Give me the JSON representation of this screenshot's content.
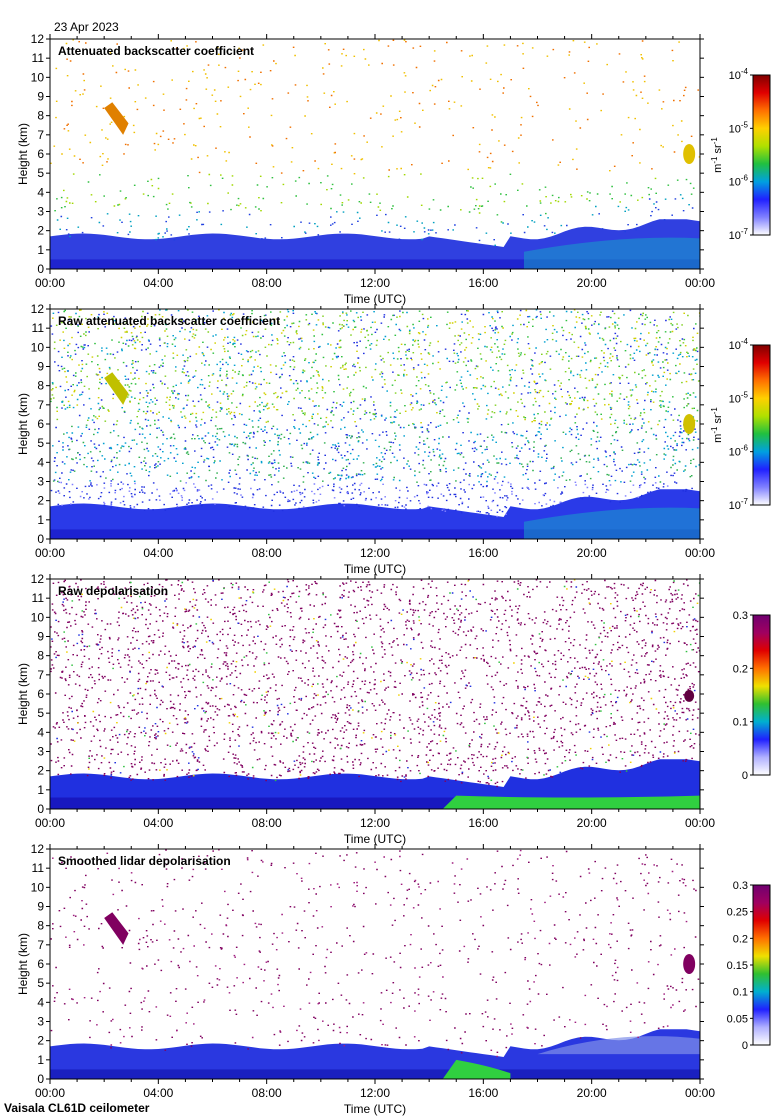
{
  "date_label": "23 Apr 2023",
  "footer": "Vaisala CL61D ceilometer",
  "colors": {
    "background": "#ffffff",
    "axis": "#000000",
    "scale": [
      "#e8e8f8",
      "#2020ff",
      "#00b0d0",
      "#30c030",
      "#f0e000",
      "#ff7000",
      "#e00000",
      "#700070"
    ],
    "depol_noise": "#800060",
    "low_blue": "#2030e0"
  },
  "chart_data": [
    {
      "type": "heatmap",
      "title": "Attenuated backscatter coefficient",
      "xlabel": "Time (UTC)",
      "ylabel": "Height (km)",
      "xticks": [
        "00:00",
        "04:00",
        "08:00",
        "12:00",
        "16:00",
        "20:00",
        "00:00"
      ],
      "xlim_hours": [
        0,
        24
      ],
      "ylim": [
        0,
        12
      ],
      "yticks": [
        0,
        1,
        2,
        3,
        4,
        5,
        6,
        7,
        8,
        9,
        10,
        11,
        12
      ],
      "colorbar": {
        "scale": "log",
        "range": [
          1e-07,
          0.0001
        ],
        "ticks": [
          {
            "base": "10",
            "exp": "-4"
          },
          {
            "base": "10",
            "exp": "-5"
          },
          {
            "base": "10",
            "exp": "-6"
          },
          {
            "base": "10",
            "exp": "-7"
          }
        ],
        "label": {
          "part1": "m",
          "exp1": "-1",
          "part2": " sr",
          "exp2": "-1"
        }
      }
    },
    {
      "type": "heatmap",
      "title": "Raw attenuated backscatter coefficient",
      "xlabel": "Time (UTC)",
      "ylabel": "Height (km)",
      "xticks": [
        "00:00",
        "04:00",
        "08:00",
        "12:00",
        "16:00",
        "20:00",
        "00:00"
      ],
      "xlim_hours": [
        0,
        24
      ],
      "ylim": [
        0,
        12
      ],
      "yticks": [
        0,
        1,
        2,
        3,
        4,
        5,
        6,
        7,
        8,
        9,
        10,
        11,
        12
      ],
      "colorbar": {
        "scale": "log",
        "range": [
          1e-07,
          0.0001
        ],
        "ticks": [
          {
            "base": "10",
            "exp": "-4"
          },
          {
            "base": "10",
            "exp": "-5"
          },
          {
            "base": "10",
            "exp": "-6"
          },
          {
            "base": "10",
            "exp": "-7"
          }
        ],
        "label": {
          "part1": "m",
          "exp1": "-1",
          "part2": " sr",
          "exp2": "-1"
        }
      }
    },
    {
      "type": "heatmap",
      "title": "Raw depolarisation",
      "xlabel": "Time (UTC)",
      "ylabel": "Height (km)",
      "xticks": [
        "00:00",
        "04:00",
        "08:00",
        "12:00",
        "16:00",
        "20:00",
        "00:00"
      ],
      "xlim_hours": [
        0,
        24
      ],
      "ylim": [
        0,
        12
      ],
      "yticks": [
        0,
        1,
        2,
        3,
        4,
        5,
        6,
        7,
        8,
        9,
        10,
        11,
        12
      ],
      "colorbar": {
        "scale": "linear",
        "range": [
          0,
          0.3
        ],
        "ticks": [
          {
            "base": "0.3"
          },
          {
            "base": "0.2"
          },
          {
            "base": "0.1"
          },
          {
            "base": "0"
          }
        ]
      }
    },
    {
      "type": "heatmap",
      "title": "Smoothed lidar depolarisation",
      "xlabel": "Time (UTC)",
      "ylabel": "Height (km)",
      "xticks": [
        "00:00",
        "04:00",
        "08:00",
        "12:00",
        "16:00",
        "20:00",
        "00:00"
      ],
      "xlim_hours": [
        0,
        24
      ],
      "ylim": [
        0,
        12
      ],
      "yticks": [
        0,
        1,
        2,
        3,
        4,
        5,
        6,
        7,
        8,
        9,
        10,
        11,
        12
      ],
      "colorbar": {
        "scale": "linear",
        "range": [
          0,
          0.3
        ],
        "ticks": [
          {
            "base": "0.3"
          },
          {
            "base": "0.25"
          },
          {
            "base": "0.2"
          },
          {
            "base": "0.15"
          },
          {
            "base": "0.1"
          },
          {
            "base": "0.05"
          },
          {
            "base": "0"
          }
        ]
      }
    }
  ]
}
